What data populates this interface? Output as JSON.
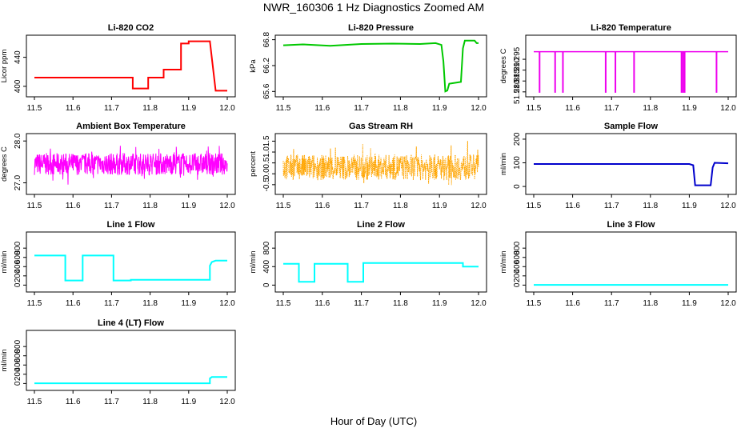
{
  "title": "NWR_160306  1 Hz Diagnostics Zoomed AM",
  "x_axis_label": "Hour of Day (UTC)",
  "x_ticks": [
    "11.5",
    "11.6",
    "11.7",
    "11.8",
    "11.9",
    "12.0"
  ],
  "chart_data": [
    {
      "type": "line",
      "title": "Li-820 CO2",
      "xlabel": "",
      "ylabel": "Licor ppm",
      "color": "#ff0000",
      "xlim": [
        11.5,
        12.0
      ],
      "ylim": [
        390,
        466
      ],
      "yticks": [
        {
          "v": 400,
          "label": "400"
        },
        {
          "v": 440,
          "label": "440"
        }
      ],
      "points": [
        [
          11.5,
          412
        ],
        [
          11.755,
          412
        ],
        [
          11.755,
          397
        ],
        [
          11.795,
          397
        ],
        [
          11.795,
          412
        ],
        [
          11.835,
          412
        ],
        [
          11.835,
          423
        ],
        [
          11.88,
          423
        ],
        [
          11.88,
          459
        ],
        [
          11.9,
          459
        ],
        [
          11.9,
          462
        ],
        [
          11.955,
          462
        ],
        [
          11.97,
          394
        ],
        [
          12.0,
          394
        ]
      ]
    },
    {
      "type": "line",
      "title": "Li-820 Pressure",
      "xlabel": "",
      "ylabel": "kPa",
      "color": "#00c800",
      "xlim": [
        11.5,
        12.0
      ],
      "ylim": [
        65.55,
        66.83
      ],
      "yticks": [
        {
          "v": 65.6,
          "label": "65.6"
        },
        {
          "v": 66.2,
          "label": "66.2"
        },
        {
          "v": 66.8,
          "label": "66.8"
        }
      ],
      "points": [
        [
          11.5,
          66.67
        ],
        [
          11.55,
          66.69
        ],
        [
          11.62,
          66.66
        ],
        [
          11.7,
          66.7
        ],
        [
          11.78,
          66.71
        ],
        [
          11.85,
          66.7
        ],
        [
          11.89,
          66.72
        ],
        [
          11.905,
          66.68
        ],
        [
          11.91,
          66.3
        ],
        [
          11.915,
          65.6
        ],
        [
          11.92,
          65.62
        ],
        [
          11.925,
          65.78
        ],
        [
          11.955,
          65.82
        ],
        [
          11.96,
          66.6
        ],
        [
          11.965,
          66.78
        ],
        [
          11.99,
          66.78
        ],
        [
          11.995,
          66.72
        ],
        [
          12.0,
          66.72
        ]
      ]
    },
    {
      "type": "line",
      "title": "Li-820 Temperature",
      "xlabel": "",
      "ylabel": "degrees C",
      "color": "#ee00ee",
      "xlim": [
        11.5,
        12.0
      ],
      "ylim": [
        51.2792,
        51.3046
      ],
      "yticks": [
        {
          "v": 51.28,
          "label": "51.280"
        },
        {
          "v": 51.285,
          "label": "51.285"
        },
        {
          "v": 51.29,
          "label": "51.290"
        },
        {
          "v": 51.295,
          "label": "51.295"
        }
      ],
      "baseline": 51.2985,
      "dropValue": 51.2796,
      "drops": [
        11.515,
        11.555,
        11.575,
        11.685,
        11.71,
        11.758,
        11.88,
        11.884,
        11.888,
        11.97
      ]
    },
    {
      "type": "noise",
      "title": "Ambient Box Temperature",
      "xlabel": "",
      "ylabel": "degrees C",
      "color": "#ff00ff",
      "xlim": [
        11.5,
        12.0
      ],
      "ylim": [
        26.8,
        28.1
      ],
      "yticks": [
        {
          "v": 27.0,
          "label": "27.0"
        },
        {
          "v": 28.0,
          "label": "28.0"
        }
      ],
      "mean": 27.45,
      "range": [
        26.95,
        27.9
      ]
    },
    {
      "type": "noise",
      "title": "Gas Stream RH",
      "xlabel": "",
      "ylabel": "percent",
      "color": "#ffa500",
      "xlim": [
        11.5,
        12.0
      ],
      "ylim": [
        -0.8,
        1.7
      ],
      "yticks": [
        {
          "v": -0.5,
          "label": "-0.5"
        },
        {
          "v": 0.0,
          "label": "0.0"
        },
        {
          "v": 0.5,
          "label": "0.5"
        },
        {
          "v": 1.0,
          "label": "1.0"
        },
        {
          "v": 1.5,
          "label": "1.5"
        }
      ],
      "mean": 0.3,
      "range": [
        -0.6,
        1.55
      ],
      "dotted": true
    },
    {
      "type": "line",
      "title": "Sample Flow",
      "xlabel": "",
      "ylabel": "ml/min",
      "color": "#0000cc",
      "xlim": [
        11.5,
        12.0
      ],
      "ylim": [
        -20,
        210
      ],
      "yticks": [
        {
          "v": 0,
          "label": "0"
        },
        {
          "v": 100,
          "label": "100"
        },
        {
          "v": 200,
          "label": "200"
        }
      ],
      "points": [
        [
          11.5,
          95
        ],
        [
          11.7,
          95
        ],
        [
          11.9,
          95
        ],
        [
          11.91,
          90
        ],
        [
          11.915,
          5
        ],
        [
          11.955,
          5
        ],
        [
          11.96,
          80
        ],
        [
          11.965,
          100
        ],
        [
          12.0,
          98
        ]
      ]
    },
    {
      "type": "line",
      "title": "Line 1 Flow",
      "xlabel": "",
      "ylabel": "ml/min",
      "color": "#00ffff",
      "xlim": [
        11.5,
        12.0
      ],
      "ylim": [
        -80,
        1080
      ],
      "yticks": [
        {
          "v": 0,
          "label": "0"
        },
        {
          "v": 200,
          "label": "200"
        },
        {
          "v": 400,
          "label": "400"
        },
        {
          "v": 600,
          "label": "600"
        },
        {
          "v": 800,
          "label": "800"
        }
      ],
      "points": [
        [
          11.5,
          640
        ],
        [
          11.58,
          640
        ],
        [
          11.58,
          100
        ],
        [
          11.625,
          100
        ],
        [
          11.625,
          640
        ],
        [
          11.705,
          640
        ],
        [
          11.705,
          100
        ],
        [
          11.75,
          100
        ],
        [
          11.75,
          115
        ],
        [
          11.955,
          115
        ],
        [
          11.955,
          420
        ],
        [
          11.96,
          500
        ],
        [
          11.97,
          530
        ],
        [
          12.0,
          530
        ]
      ]
    },
    {
      "type": "line",
      "title": "Line 2 Flow",
      "xlabel": "",
      "ylabel": "ml/min",
      "color": "#00ffff",
      "xlim": [
        11.5,
        12.0
      ],
      "ylim": [
        -80,
        1080
      ],
      "yticks": [
        {
          "v": 0,
          "label": "0"
        },
        {
          "v": 400,
          "label": "400"
        },
        {
          "v": 800,
          "label": "800"
        }
      ],
      "points": [
        [
          11.5,
          460
        ],
        [
          11.54,
          460
        ],
        [
          11.54,
          70
        ],
        [
          11.58,
          70
        ],
        [
          11.58,
          460
        ],
        [
          11.665,
          460
        ],
        [
          11.665,
          70
        ],
        [
          11.705,
          70
        ],
        [
          11.705,
          480
        ],
        [
          11.96,
          480
        ],
        [
          11.96,
          400
        ],
        [
          12.0,
          400
        ]
      ]
    },
    {
      "type": "line",
      "title": "Line 3 Flow",
      "xlabel": "",
      "ylabel": "ml/min",
      "color": "#00ffff",
      "xlim": [
        11.5,
        12.0
      ],
      "ylim": [
        -80,
        1080
      ],
      "yticks": [
        {
          "v": 0,
          "label": "0"
        },
        {
          "v": 200,
          "label": "200"
        },
        {
          "v": 400,
          "label": "400"
        },
        {
          "v": 600,
          "label": "600"
        },
        {
          "v": 800,
          "label": "800"
        }
      ],
      "points": [
        [
          11.5,
          5
        ],
        [
          12.0,
          5
        ]
      ]
    },
    {
      "type": "line",
      "title": "Line 4 (LT) Flow",
      "xlabel": "",
      "ylabel": "ml/min",
      "color": "#00ffff",
      "xlim": [
        11.5,
        12.0
      ],
      "ylim": [
        -80,
        1080
      ],
      "yticks": [
        {
          "v": 0,
          "label": "0"
        },
        {
          "v": 200,
          "label": "200"
        },
        {
          "v": 400,
          "label": "400"
        },
        {
          "v": 600,
          "label": "600"
        },
        {
          "v": 800,
          "label": "800"
        }
      ],
      "points": [
        [
          11.5,
          5
        ],
        [
          11.955,
          5
        ],
        [
          11.955,
          110
        ],
        [
          11.96,
          140
        ],
        [
          12.0,
          140
        ]
      ]
    }
  ]
}
